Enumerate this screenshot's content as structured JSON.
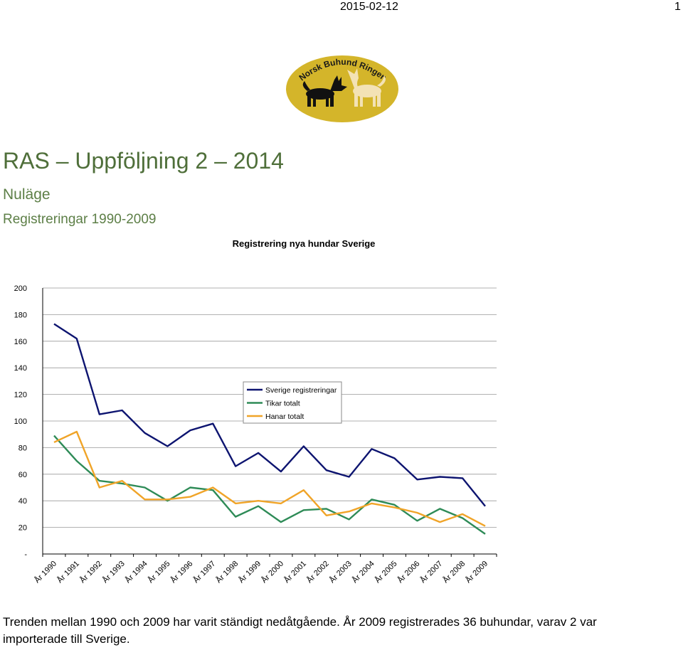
{
  "header": {
    "date": "2015-02-12",
    "page_number": "1"
  },
  "logo": {
    "text": "Norsk Buhund Ringen",
    "color": "#d4b52a"
  },
  "slide": {
    "title": "RAS – Uppföljning 2 – 2014",
    "subtitle": "Nuläge",
    "subsubtitle": "Registreringar 1990-2009",
    "caption": "Trenden mellan 1990 och 2009 har varit ständigt nedåtgående. År 2009 registrerades 36 buhundar, varav 2 var importerade till Sverige."
  },
  "chart_data": {
    "type": "line",
    "title": "Registrering nya hundar Sverige",
    "categories": [
      "År 1990",
      "År 1991",
      "År 1992",
      "År 1993",
      "År 1994",
      "År 1995",
      "År 1996",
      "År 1997",
      "År 1998",
      "År 1999",
      "År 2000",
      "År 2001",
      "År 2002",
      "År 2003",
      "År 2004",
      "År 2005",
      "År 2006",
      "År 2007",
      "År 2008",
      "År 2009"
    ],
    "ylim": [
      0,
      200
    ],
    "yticks": [
      0,
      20,
      40,
      60,
      80,
      100,
      120,
      140,
      160,
      180,
      200
    ],
    "ytick_labels": [
      "-",
      "20",
      "40",
      "60",
      "80",
      "100",
      "120",
      "140",
      "160",
      "180",
      "200"
    ],
    "grid": true,
    "legend": "top-right",
    "series": [
      {
        "name": "Sverige registreringar",
        "color": "#0d1470",
        "values": [
          173,
          162,
          105,
          108,
          91,
          81,
          93,
          98,
          66,
          76,
          62,
          81,
          63,
          58,
          79,
          72,
          56,
          58,
          57,
          36
        ]
      },
      {
        "name": "Tikar totalt",
        "color": "#2e8b57",
        "values": [
          89,
          70,
          55,
          53,
          50,
          40,
          50,
          48,
          28,
          36,
          24,
          33,
          34,
          26,
          41,
          37,
          25,
          34,
          27,
          15
        ]
      },
      {
        "name": "Hanar totalt",
        "color": "#f0a428",
        "values": [
          84,
          92,
          50,
          55,
          41,
          41,
          43,
          50,
          38,
          40,
          38,
          48,
          29,
          32,
          38,
          35,
          31,
          24,
          30,
          21
        ]
      }
    ]
  }
}
